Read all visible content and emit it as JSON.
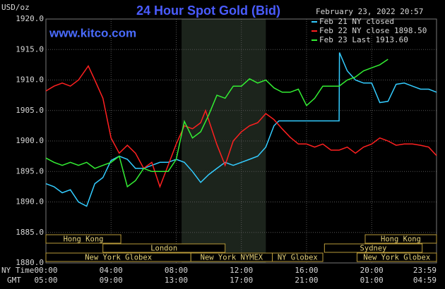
{
  "chart_data": {
    "type": "line",
    "title": "24 Hour Spot Gold (Bid)",
    "site": "www.kitco.com",
    "ylabel": "USD/oz",
    "timestamp": "February 23, 2022 20:57",
    "x_axis_label": "NY Time",
    "x2_axis_label": "GMT",
    "xlim": [
      0,
      23.98
    ],
    "xticks": [
      {
        "value": 0,
        "label": "00:00"
      },
      {
        "value": 4,
        "label": "04:00"
      },
      {
        "value": 8,
        "label": "08:00"
      },
      {
        "value": 12,
        "label": "12:00"
      },
      {
        "value": 16,
        "label": "16:00"
      },
      {
        "value": 20,
        "label": "20:00"
      },
      {
        "value": 23.98,
        "label": "23:59"
      }
    ],
    "x2ticks": [
      {
        "value": 0,
        "label": "05:00"
      },
      {
        "value": 4,
        "label": "09:00"
      },
      {
        "value": 8,
        "label": "13:00"
      },
      {
        "value": 12,
        "label": "17:00"
      },
      {
        "value": 16,
        "label": "21:00"
      },
      {
        "value": 20,
        "label": "01:00"
      },
      {
        "value": 23.98,
        "label": "04:59"
      }
    ],
    "ylim": [
      1880,
      1920
    ],
    "yticks": [
      {
        "value": 1880,
        "label": "1880.0"
      },
      {
        "value": 1885,
        "label": "1885.0"
      },
      {
        "value": 1890,
        "label": "1890.0"
      },
      {
        "value": 1895,
        "label": "1895.0"
      },
      {
        "value": 1900,
        "label": "1900.0"
      },
      {
        "value": 1905,
        "label": "1905.0"
      },
      {
        "value": 1910,
        "label": "1910.0"
      },
      {
        "value": 1915,
        "label": "1915.0"
      },
      {
        "value": 1920,
        "label": "1920.0"
      }
    ],
    "grid": true,
    "shaded": [
      8.33,
      13.5
    ],
    "series": [
      {
        "name": "Feb 21 NY closed",
        "color": "#33ccff",
        "x": [
          0,
          0.5,
          1,
          1.5,
          2,
          2.5,
          3,
          3.5,
          4,
          4.5,
          5,
          5.5,
          6,
          6.5,
          7,
          7.5,
          8,
          8.5,
          9,
          9.5,
          10,
          10.5,
          11,
          11.5,
          12,
          12.5,
          13,
          13.5,
          14,
          14.3,
          15,
          16,
          17,
          18,
          18.02,
          18.5,
          19,
          19.5,
          20,
          20.5,
          21,
          21.5,
          22,
          22.5,
          23,
          23.5,
          23.98
        ],
        "values": [
          1893,
          1892.5,
          1891.5,
          1892,
          1890,
          1889.3,
          1893,
          1894,
          1896.8,
          1897.5,
          1897,
          1895.5,
          1895.5,
          1896,
          1896.5,
          1896.5,
          1897,
          1896.5,
          1895,
          1893.2,
          1894.5,
          1895.5,
          1896.5,
          1896,
          1896.5,
          1897,
          1897.5,
          1899,
          1902.5,
          1903.3,
          1903.3,
          1903.3,
          1903.3,
          1903.3,
          1914.5,
          1911.5,
          1910,
          1909.5,
          1909.5,
          1906.3,
          1906.5,
          1909.3,
          1909.5,
          1909,
          1908.5,
          1908.5,
          1908
        ]
      },
      {
        "name": "Feb 22 NY close 1898.50",
        "color": "#ff2020",
        "x": [
          0,
          0.5,
          1,
          1.5,
          2,
          2.6,
          3,
          3.5,
          4,
          4.5,
          5,
          5.5,
          6,
          6.5,
          7,
          7.5,
          8,
          8.5,
          9,
          9.5,
          9.8,
          10.5,
          11,
          11.5,
          12,
          12.5,
          13,
          13.5,
          14,
          14.5,
          15,
          15.5,
          16,
          16.5,
          17,
          17.5,
          18,
          18.5,
          19,
          19.5,
          20,
          20.5,
          21,
          21.5,
          22,
          22.5,
          23,
          23.5,
          23.98
        ],
        "values": [
          1908.2,
          1909,
          1909.5,
          1909,
          1910,
          1912.3,
          1910,
          1907,
          1900.5,
          1898,
          1899.3,
          1898,
          1895.5,
          1896.5,
          1892.5,
          1896,
          1899.5,
          1902.5,
          1902,
          1903,
          1905,
          1899.4,
          1896,
          1900,
          1901.5,
          1902.5,
          1903,
          1904.5,
          1903.5,
          1902,
          1900.6,
          1899.5,
          1899.5,
          1899,
          1899.5,
          1898.5,
          1898.5,
          1899,
          1898,
          1899,
          1899.5,
          1900.5,
          1900,
          1899.3,
          1899.5,
          1899.5,
          1899.3,
          1899,
          1897.6
        ]
      },
      {
        "name": "Feb 23 Last 1913.60",
        "color": "#33ee33",
        "x": [
          0,
          0.5,
          1,
          1.5,
          2,
          2.5,
          3,
          3.5,
          4,
          4.5,
          5,
          5.5,
          6,
          6.5,
          7,
          7.5,
          8,
          8.5,
          9,
          9.5,
          10,
          10.5,
          11,
          11.5,
          12,
          12.5,
          13,
          13.5,
          14,
          14.5,
          15,
          15.5,
          16,
          16.5,
          17,
          17.5,
          18,
          18.5,
          19,
          19.5,
          20,
          20.5,
          21
        ],
        "values": [
          1897.2,
          1896.5,
          1896,
          1896.5,
          1896,
          1896.5,
          1895.5,
          1896,
          1896.5,
          1897.5,
          1892.5,
          1893.5,
          1895.5,
          1895,
          1895,
          1895,
          1897,
          1903.2,
          1900.5,
          1901.5,
          1904.3,
          1907.5,
          1907,
          1909,
          1909,
          1910.2,
          1909.5,
          1910,
          1908.7,
          1908,
          1908,
          1908.5,
          1905.8,
          1907,
          1909,
          1909,
          1909,
          1910,
          1910.5,
          1911.5,
          1912,
          1912.5,
          1913.4
        ]
      }
    ],
    "sessions": [
      [
        {
          "label": "Hong Kong",
          "start": 0,
          "end": 4.6
        },
        {
          "label": "Hong Kong",
          "start": 19.6,
          "end": 23.98
        }
      ],
      [
        {
          "label": "London",
          "start": 3.5,
          "end": 11
        },
        {
          "label": "Sydney",
          "start": 17.1,
          "end": 23.1
        }
      ],
      [
        {
          "label": "New York Globex",
          "start": 0,
          "end": 8.9
        },
        {
          "label": "New York NYMEX",
          "start": 8.9,
          "end": 13.9
        },
        {
          "label": "NY Globex",
          "start": 13.9,
          "end": 17
        },
        {
          "label": "New York Globex",
          "start": 19.1,
          "end": 23.98
        }
      ]
    ]
  }
}
